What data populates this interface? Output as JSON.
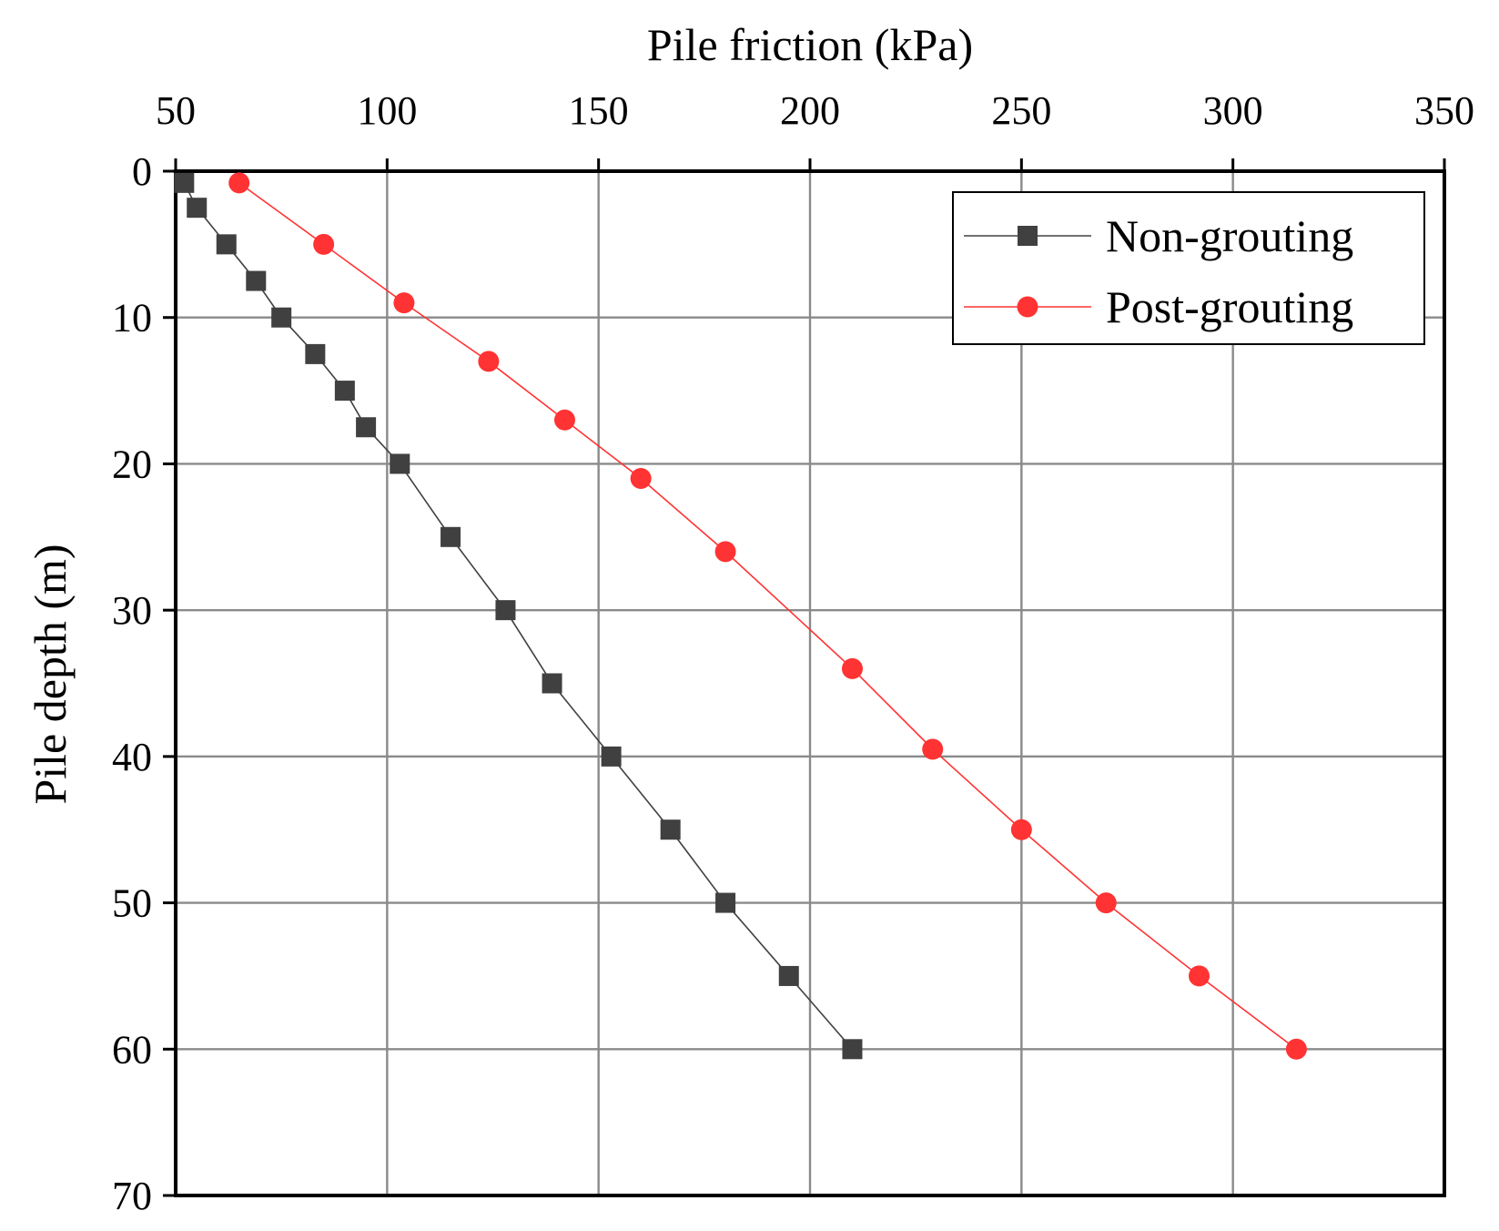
{
  "chart_data": {
    "type": "line",
    "title": "",
    "xlabel": "Pile friction (kPa)",
    "ylabel": "Pile depth (m)",
    "x_axis_position": "top",
    "y_axis_inverted": true,
    "xlim": [
      50,
      350
    ],
    "ylim": [
      0,
      70
    ],
    "x_ticks": [
      50,
      100,
      150,
      200,
      250,
      300,
      350
    ],
    "y_ticks": [
      0,
      10,
      20,
      30,
      40,
      50,
      60,
      70
    ],
    "grid": true,
    "legend_position": "top-right",
    "series": [
      {
        "name": "Non-grouting",
        "color": "#404040",
        "marker": "square",
        "x": [
          52,
          55,
          62,
          69,
          75,
          83,
          90,
          95,
          103,
          115,
          128,
          139,
          153,
          167,
          180,
          195,
          210
        ],
        "y": [
          0.8,
          2.5,
          5,
          7.5,
          10,
          12.5,
          15,
          17.5,
          20,
          25,
          30,
          35,
          40,
          45,
          50,
          55,
          60
        ]
      },
      {
        "name": "Post-grouting",
        "color": "#ff3333",
        "marker": "circle",
        "x": [
          65,
          85,
          104,
          124,
          142,
          160,
          180,
          210,
          229,
          250,
          270,
          292,
          315
        ],
        "y": [
          0.8,
          5,
          9,
          13,
          17,
          21,
          26,
          34,
          39.5,
          45,
          50,
          55,
          60
        ]
      }
    ]
  }
}
